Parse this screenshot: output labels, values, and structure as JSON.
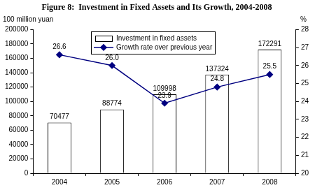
{
  "chart_data": {
    "type": "bar",
    "title": "Figure 8:  Investment in Fixed Assets and Its Growth, 2004-2008",
    "ylabel": "100 million yuan",
    "y2label": "%",
    "categories": [
      "2004",
      "2005",
      "2006",
      "2007",
      "2008"
    ],
    "series": [
      {
        "name": "Investment in fixed assets",
        "type": "bar",
        "color": "#ffffff",
        "values": [
          70477,
          88774,
          109998,
          137324,
          172291
        ]
      },
      {
        "name": "Growth rate over previous year",
        "type": "line",
        "color": "#000080",
        "marker": "diamond",
        "axis": "y2",
        "values": [
          26.6,
          26.0,
          23.9,
          24.8,
          25.5
        ],
        "value_labels": [
          "26.6",
          "26.0",
          "23.9",
          "24.8",
          "25.5"
        ]
      }
    ],
    "ylim": [
      0,
      200000
    ],
    "yticks": [
      0,
      20000,
      40000,
      60000,
      80000,
      100000,
      120000,
      140000,
      160000,
      180000,
      200000
    ],
    "y2lim": [
      20,
      28
    ],
    "y2ticks": [
      20,
      21,
      22,
      23,
      24,
      25,
      26,
      27,
      28
    ],
    "grid": false,
    "legend": "upper center",
    "data_labels": true
  }
}
